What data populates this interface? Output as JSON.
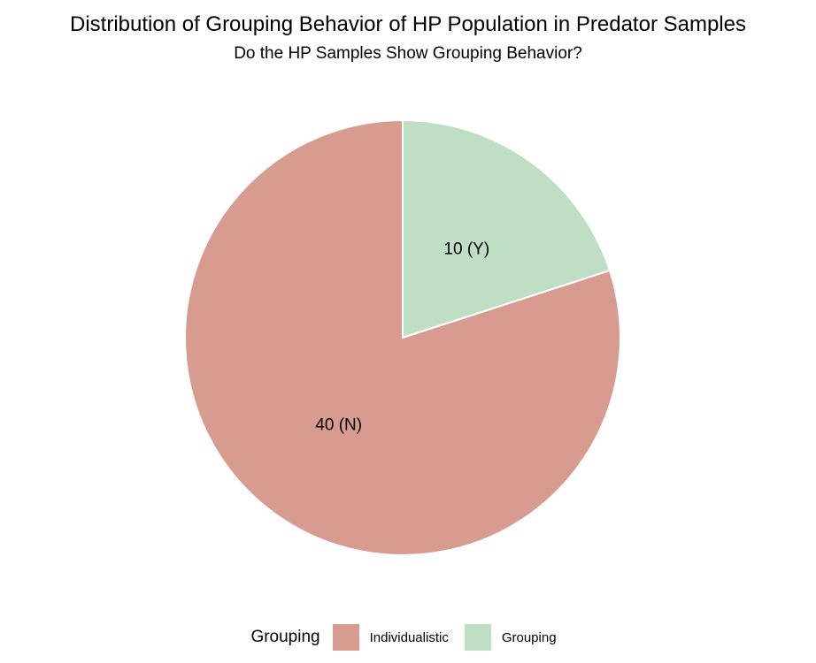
{
  "chart_data": {
    "type": "pie",
    "title": "Distribution of Grouping Behavior of HP Population in Predator Samples",
    "subtitle": "Do the HP Samples Show Grouping Behavior?",
    "legend_title": "Grouping",
    "legend_position": "bottom",
    "slices": [
      {
        "category": "Grouping",
        "value": 10,
        "label": "10 (Y)",
        "color": "#bfdfc4"
      },
      {
        "category": "Individualistic",
        "value": 40,
        "label": "40 (N)",
        "color": "#d89b90"
      }
    ],
    "legend": [
      {
        "label": "Individualistic",
        "color": "#d89b90"
      },
      {
        "label": "Grouping",
        "color": "#bfdfc4"
      }
    ]
  }
}
